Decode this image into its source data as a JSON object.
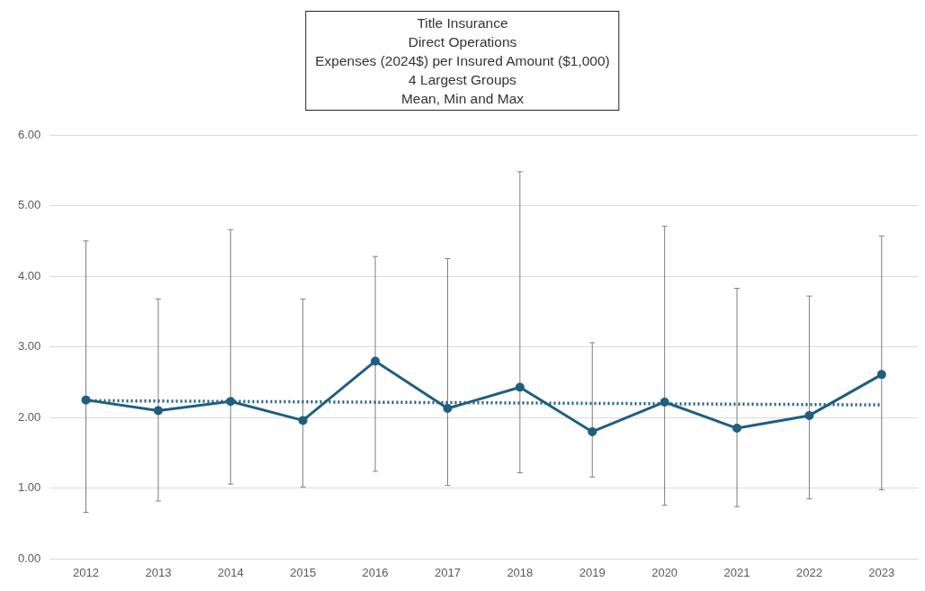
{
  "chart_data": {
    "type": "line",
    "title": "Title Insurance\nDirect Operations\nExpenses (2024$) per Insured Amount ($1,000)\n4 Largest Groups\nMean, Min and Max",
    "categories": [
      "2012",
      "2013",
      "2014",
      "2015",
      "2016",
      "2017",
      "2018",
      "2019",
      "2020",
      "2021",
      "2022",
      "2023"
    ],
    "series": [
      {
        "color": "#1f5f7f",
        "values": [
          2.25,
          2.1,
          2.23,
          1.96,
          2.8,
          2.13,
          2.43,
          1.8,
          2.22,
          1.85,
          2.03,
          2.61
        ],
        "errors": [
          [
            0.66,
            4.5
          ],
          [
            0.82,
            3.68
          ],
          [
            1.06,
            4.66
          ],
          [
            1.02,
            3.68
          ],
          [
            1.24,
            4.28
          ],
          [
            1.04,
            4.25
          ],
          [
            1.22,
            5.48
          ],
          [
            1.16,
            3.06
          ],
          [
            0.76,
            4.71
          ],
          [
            0.74,
            3.83
          ],
          [
            0.85,
            3.72
          ],
          [
            0.98,
            4.57
          ]
        ],
        "marker": "circle",
        "line_style": "solid"
      },
      {
        "type": "line",
        "color": "#1f5f7f",
        "values": [
          2.24,
          null,
          null,
          null,
          null,
          null,
          null,
          null,
          null,
          null,
          null,
          2.18
        ],
        "marker": "none",
        "line_style": "dotted"
      }
    ],
    "ylim": [
      0,
      6
    ],
    "yticks": [
      {
        "value": 0,
        "label": "0.00"
      },
      {
        "value": 1,
        "label": "1.00"
      },
      {
        "value": 2,
        "label": "2.00"
      },
      {
        "value": 3,
        "label": "3.00"
      },
      {
        "value": 4,
        "label": "4.00"
      },
      {
        "value": 5,
        "label": "5.00"
      },
      {
        "value": 6,
        "label": "6.00"
      }
    ],
    "grid": "y",
    "legend": false
  }
}
